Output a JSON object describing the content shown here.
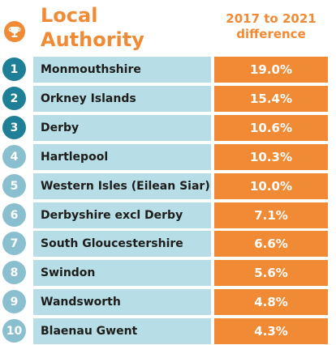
{
  "colors": {
    "accent": "#F08A34",
    "rank_dark": "#1E7F96",
    "rank_light": "#8ABFCF",
    "name_band": "#B7DDE6",
    "text": "#1d1d1b"
  },
  "header": {
    "icon": "trophy-icon",
    "title_lines": [
      "Local",
      "Authority"
    ],
    "metric_lines": [
      "2017 to 2021",
      "difference"
    ]
  },
  "chart_data": {
    "type": "table",
    "columns": [
      "Local Authority",
      "2017 to 2021 difference"
    ],
    "rows": [
      {
        "rank": "1",
        "name": "Monmouthshire",
        "value": 19.0,
        "label": "19.0%"
      },
      {
        "rank": "2",
        "name": "Orkney Islands",
        "value": 15.4,
        "label": "15.4%"
      },
      {
        "rank": "3",
        "name": "Derby",
        "value": 10.6,
        "label": "10.6%"
      },
      {
        "rank": "4",
        "name": "Hartlepool",
        "value": 10.3,
        "label": "10.3%"
      },
      {
        "rank": "5",
        "name": "Western Isles (Eilean Siar)",
        "value": 10.0,
        "label": "10.0%"
      },
      {
        "rank": "6",
        "name": "Derbyshire excl Derby",
        "value": 7.1,
        "label": "7.1%"
      },
      {
        "rank": "7",
        "name": "South Gloucestershire",
        "value": 6.6,
        "label": "6.6%"
      },
      {
        "rank": "8",
        "name": "Swindon",
        "value": 5.6,
        "label": "5.6%"
      },
      {
        "rank": "9",
        "name": "Wandsworth",
        "value": 4.8,
        "label": "4.8%"
      },
      {
        "rank": "10",
        "name": "Blaenau Gwent",
        "value": 4.3,
        "label": "4.3%"
      }
    ]
  }
}
